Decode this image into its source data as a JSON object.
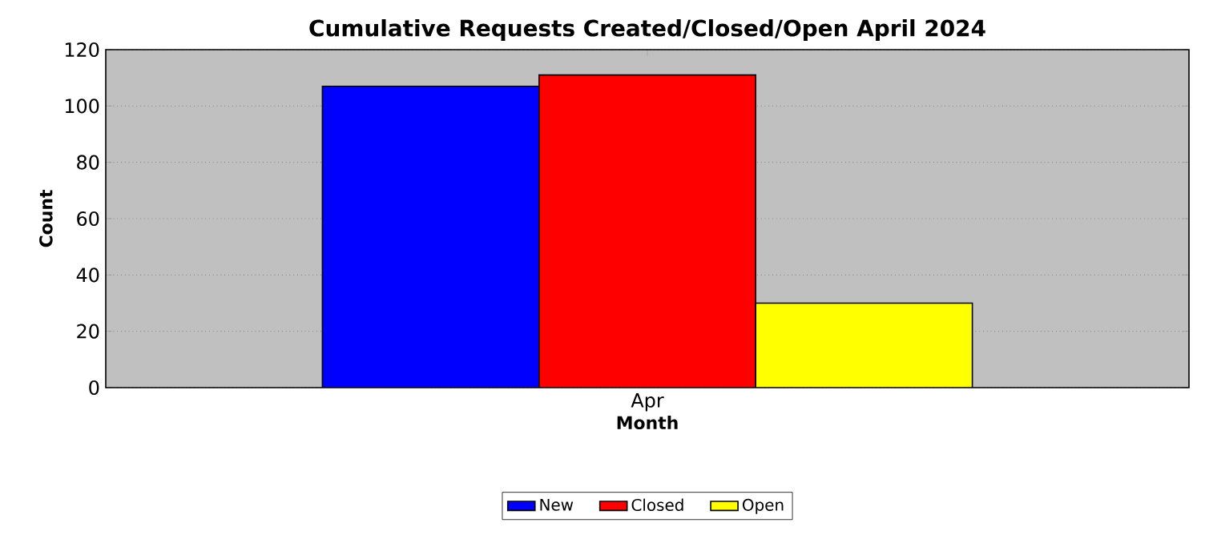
{
  "chart_data": {
    "type": "bar",
    "title": "Cumulative Requests Created/Closed/Open April 2024",
    "xlabel": "Month",
    "ylabel": "Count",
    "categories": [
      "Apr"
    ],
    "series": [
      {
        "name": "New",
        "color": "#0000ff",
        "values": [
          107
        ]
      },
      {
        "name": "Closed",
        "color": "#ff0000",
        "values": [
          111
        ]
      },
      {
        "name": "Open",
        "color": "#ffff00",
        "values": [
          30
        ]
      }
    ],
    "ylim": [
      0,
      120
    ],
    "yticks": [
      0,
      20,
      40,
      60,
      80,
      100,
      120
    ],
    "grid": "y",
    "legend": "bottom"
  }
}
